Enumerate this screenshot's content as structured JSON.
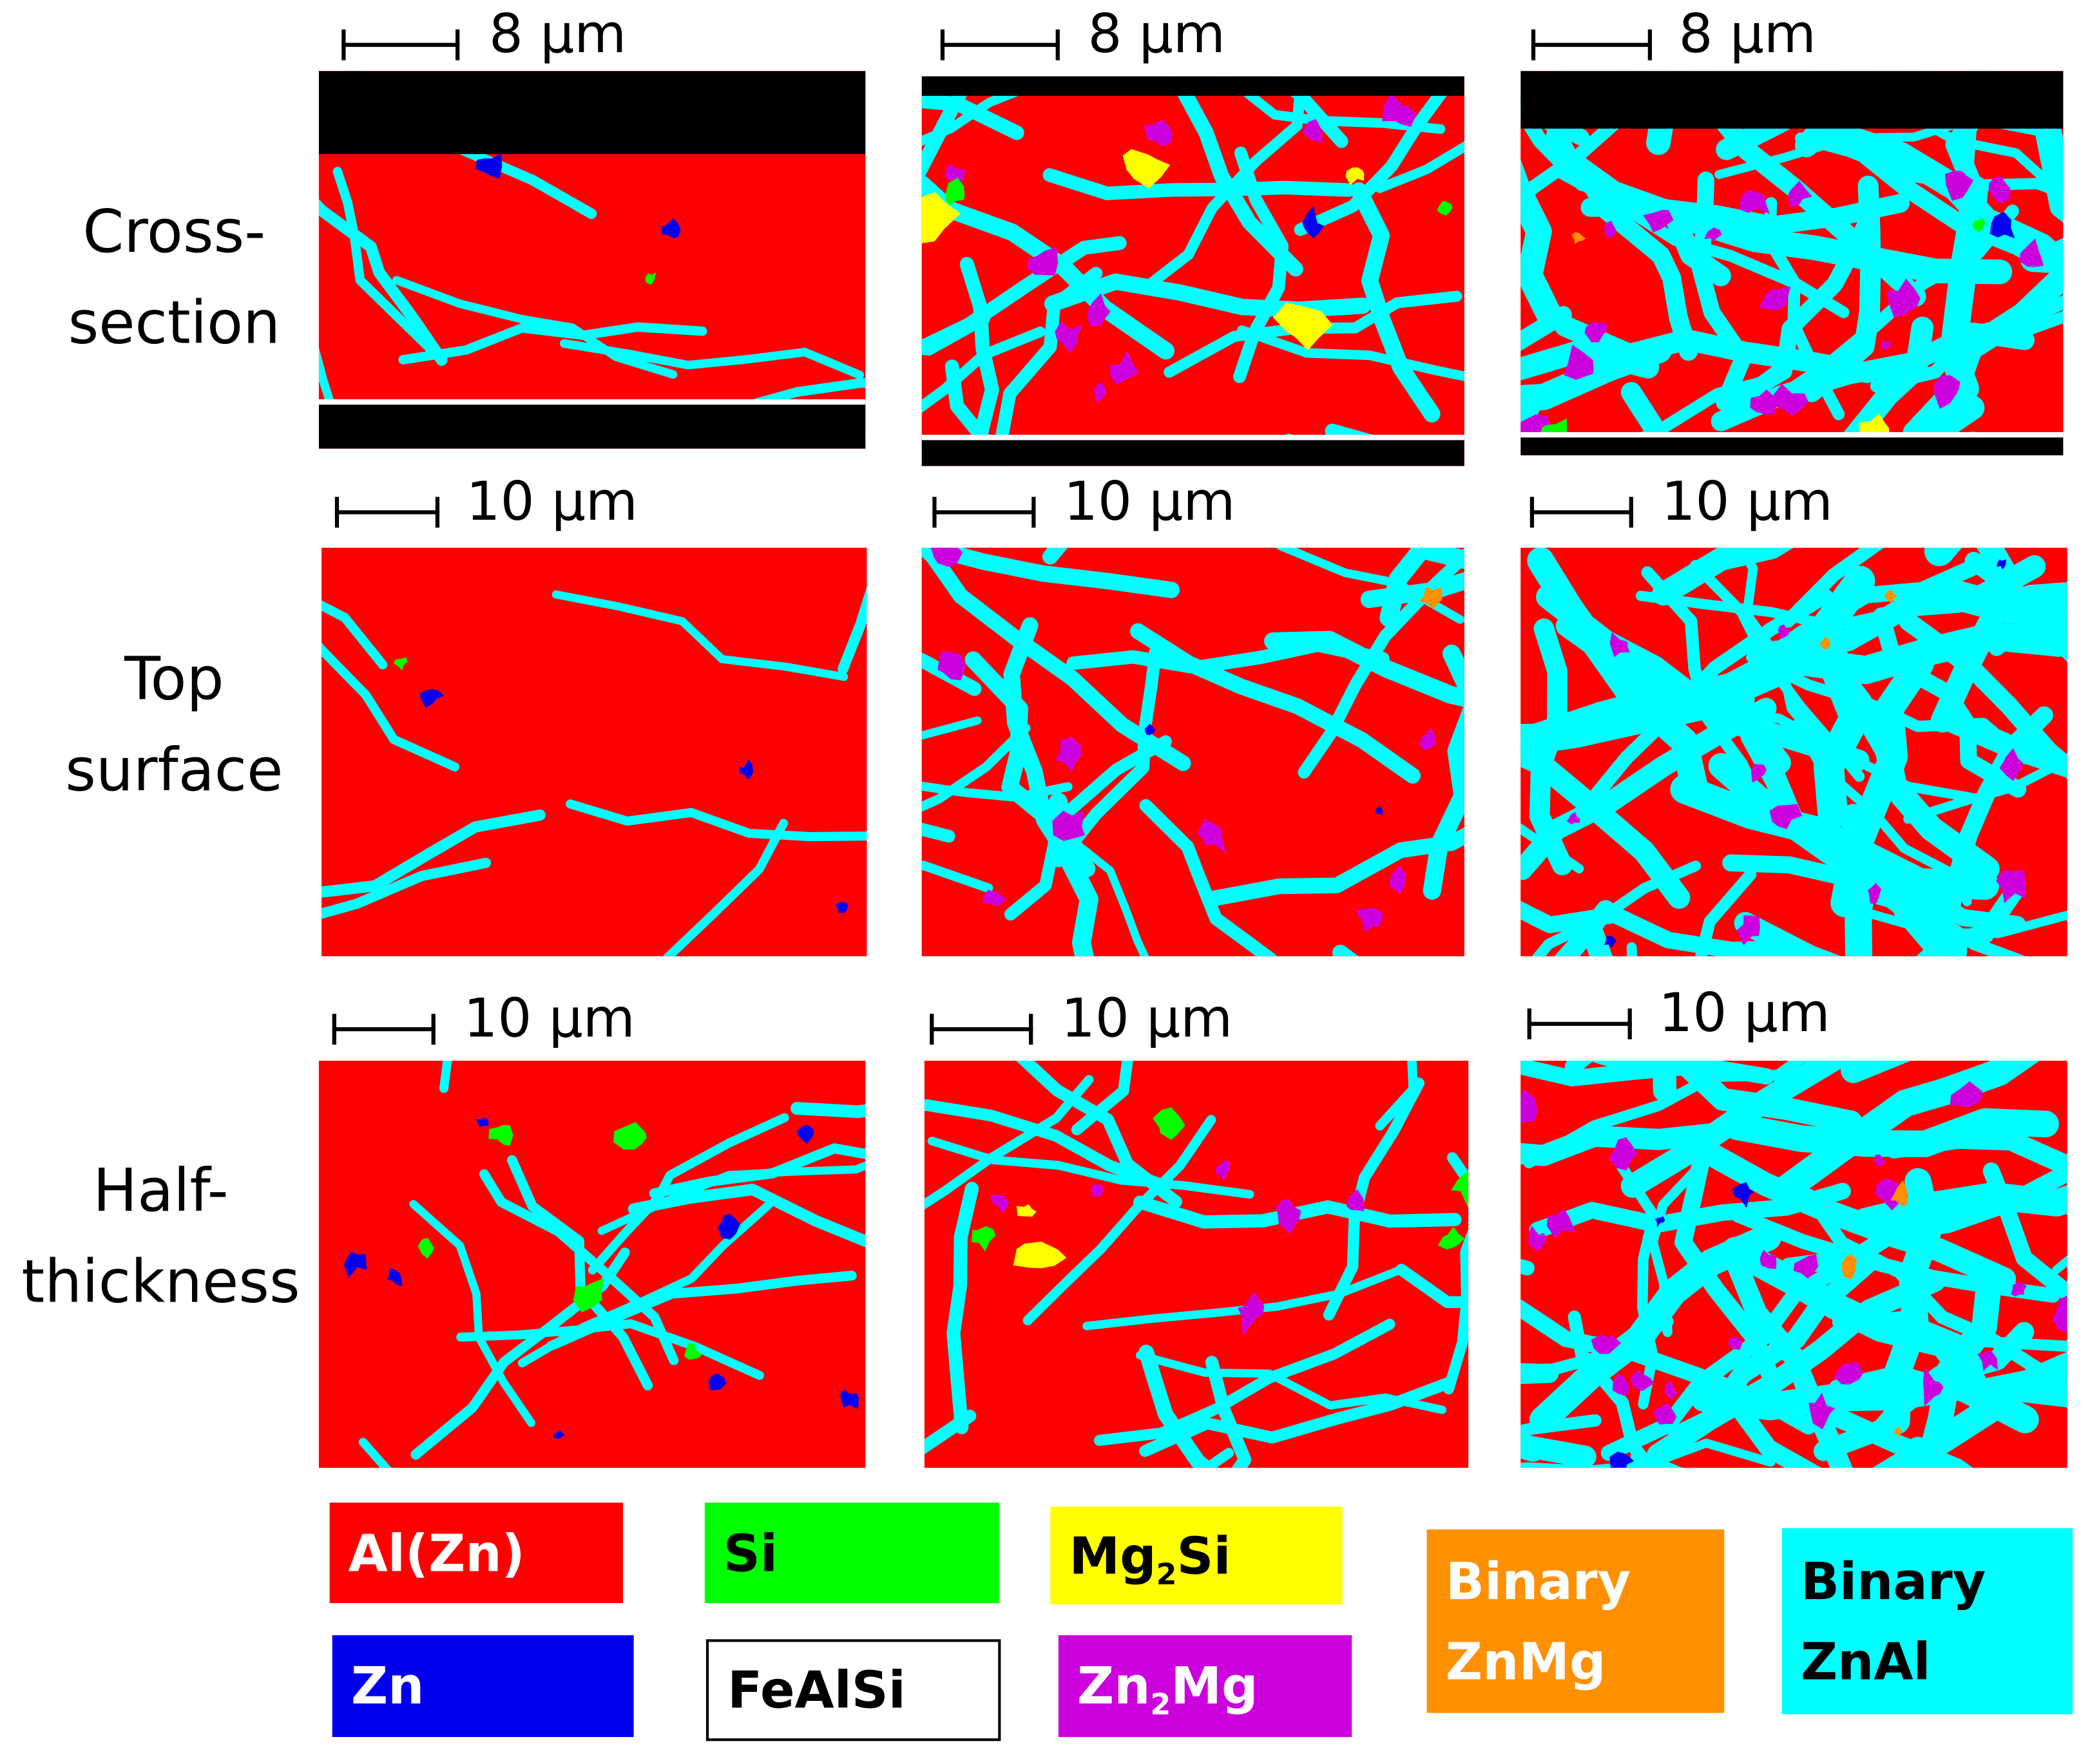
{
  "row_labels": [
    "Cross-\nsection",
    "Top\nsurface",
    "Half-\nthickness"
  ],
  "scale_bars": [
    [
      "8 µm",
      "8 µm",
      "8 µm"
    ],
    [
      "10 µm",
      "10 µm",
      "10 µm"
    ],
    [
      "10 µm",
      "10 µm",
      "10 µm"
    ]
  ],
  "legend": [
    {
      "label": "Al(Zn)",
      "color": "#ff0000",
      "text_color": "#ffffff"
    },
    {
      "label": "Si",
      "color": "#00ff00",
      "text_color": "#000000"
    },
    {
      "label_main": "Mg",
      "label_sub": "2",
      "label_end": "Si",
      "color": "#ffff00",
      "text_color": "#000000"
    },
    {
      "label_line1": "Binary",
      "label_line2": "ZnMg",
      "color": "#ff9000",
      "text_color": "#ffffff"
    },
    {
      "label_line1": "Binary",
      "label_line2": "ZnAl",
      "color": "#00ffff",
      "text_color": "#000000"
    },
    {
      "label": "Zn",
      "color": "#0000ee",
      "text_color": "#ffffff"
    },
    {
      "label": "FeAlSi",
      "color": "#ffffff",
      "text_color": "#000000"
    },
    {
      "label_main": "Zn",
      "label_sub": "2",
      "label_end": "Mg",
      "color": "#cc00dd",
      "text_color": "#ffffff"
    }
  ]
}
